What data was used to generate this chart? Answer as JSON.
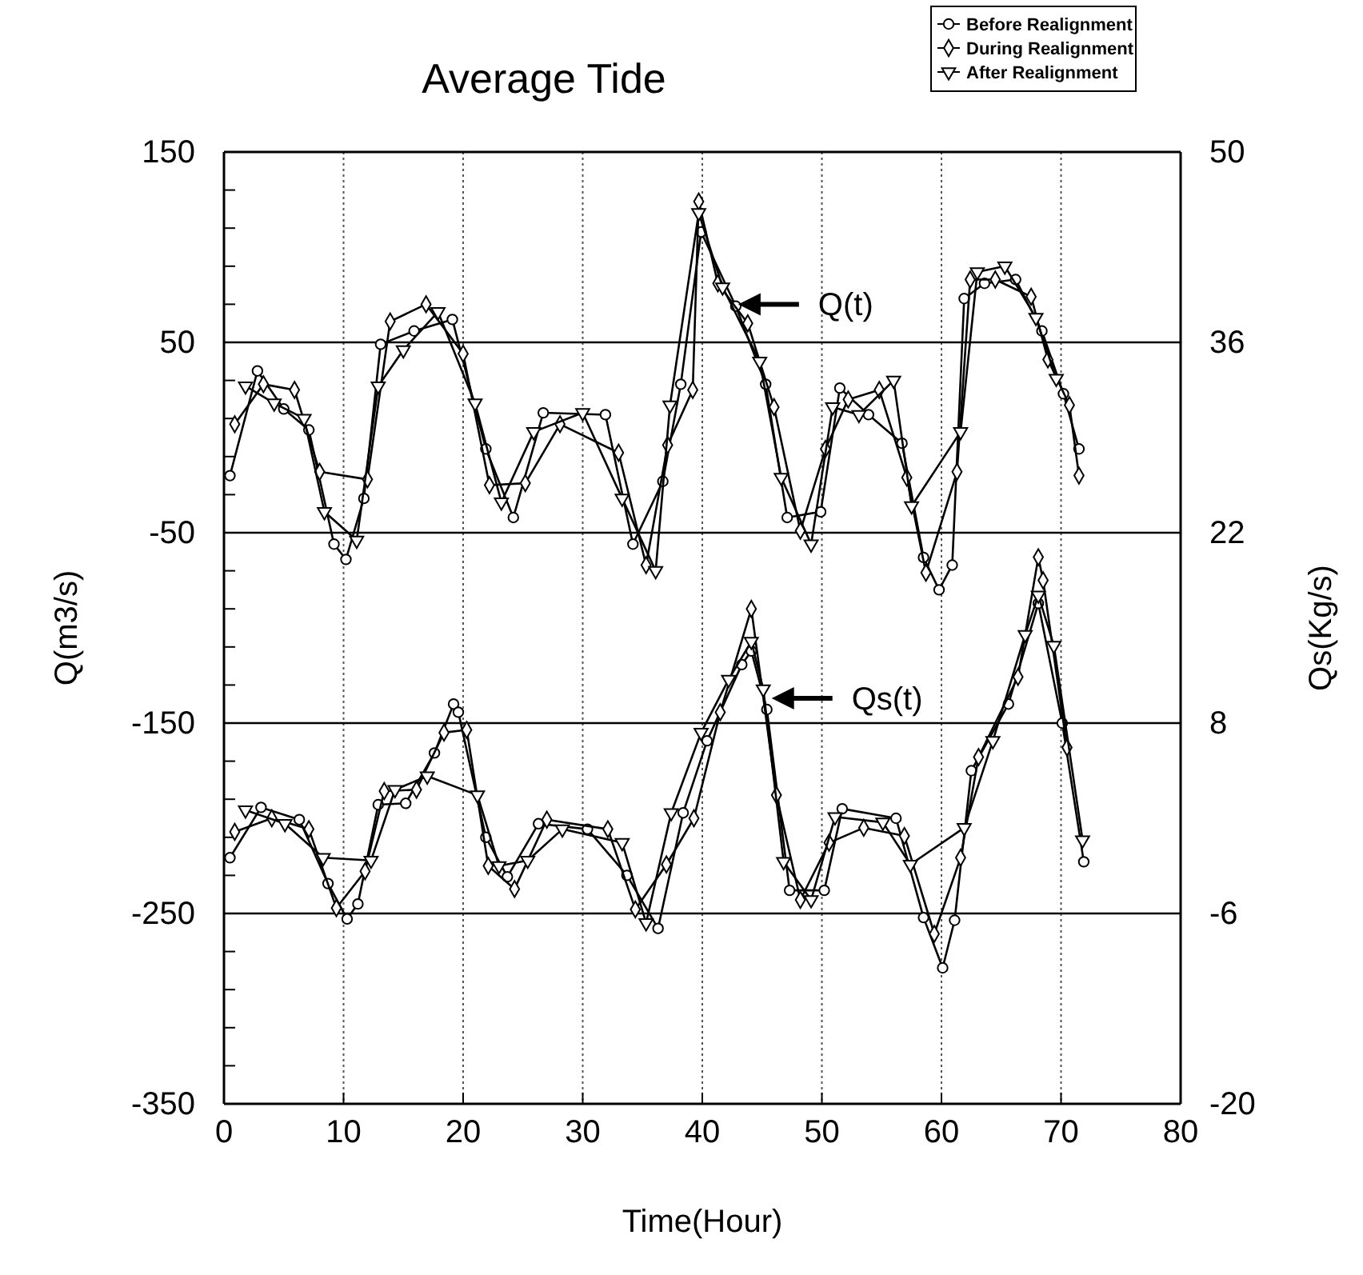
{
  "chart_data": {
    "type": "line",
    "title": "Average Tide",
    "xlabel": "Time(Hour)",
    "ylabel": "Q(m3/s)",
    "y2label": "Qs(Kg/s)",
    "xlim": [
      0,
      80
    ],
    "xticks": [
      0,
      10,
      20,
      30,
      40,
      50,
      60,
      70,
      80
    ],
    "ylim": [
      -350,
      150
    ],
    "yticks": [
      150,
      {
        "value": 130,
        "label": null
      },
      {
        "value": 110,
        "label": null
      },
      {
        "value": 90,
        "label": null
      },
      {
        "value": 70,
        "label": null
      },
      50,
      {
        "value": 30,
        "label": null
      },
      {
        "value": 10,
        "label": null
      },
      {
        "value": -10,
        "label": null
      },
      {
        "value": -30,
        "label": null
      },
      -50,
      {
        "value": -70,
        "label": null
      },
      {
        "value": -90,
        "label": null
      },
      {
        "value": -110,
        "label": null
      },
      {
        "value": -130,
        "label": null
      },
      -150,
      {
        "value": -170,
        "label": null
      },
      {
        "value": -190,
        "label": null
      },
      {
        "value": -210,
        "label": null
      },
      {
        "value": -230,
        "label": null
      },
      -250,
      {
        "value": -270,
        "label": null
      },
      {
        "value": -290,
        "label": null
      },
      {
        "value": -310,
        "label": null
      },
      {
        "value": -330,
        "label": null
      },
      -350
    ],
    "y2lim": [
      -20,
      50
    ],
    "y2ticks": [
      50,
      36,
      22,
      8,
      -6,
      -20
    ],
    "grid": true,
    "legend": "top right",
    "line_style": "solid",
    "annotations": [
      {
        "text": "Q(t)",
        "x": 43,
        "y": 70
      },
      {
        "text": "Qs(t)",
        "x": 45.8,
        "y": -137
      }
    ],
    "series": [
      {
        "name": "Before Realignment",
        "color": "#000000",
        "marker": "circle",
        "axis": "y",
        "x": [
          0.5,
          2.8,
          5,
          7.1,
          9.2,
          10.2,
          11.7,
          13.1,
          15.9,
          19.1,
          21.9,
          24.2,
          26.7,
          31.9,
          34.2,
          36.7,
          38.2,
          39.9,
          42.8,
          45.3,
          47.1,
          49.9,
          51.5,
          53.9,
          56.7,
          58.5,
          59.8,
          60.9,
          61.9,
          63.6,
          66.2,
          68.4,
          70.2,
          71.5
        ],
        "values": [
          -20,
          35,
          15,
          4,
          -56,
          -64,
          -32,
          49,
          56,
          62,
          -6,
          -42,
          13,
          12,
          -56,
          -23,
          28,
          108,
          69,
          28,
          -42,
          -39,
          26,
          12,
          -3,
          -63,
          -80,
          -67,
          73,
          81,
          83,
          56,
          23,
          -6
        ]
      },
      {
        "name": "During Realignment",
        "color": "#000000",
        "marker": "diamond",
        "axis": "y",
        "x": [
          0.9,
          3.3,
          5.9,
          8,
          12,
          13.9,
          16.9,
          20,
          22.2,
          25.2,
          28.1,
          33,
          35.3,
          37.1,
          39.2,
          39.7,
          41.3,
          43.8,
          46,
          48.2,
          50.3,
          52.2,
          54.8,
          57.1,
          58.7,
          61.3,
          62.4,
          64.5,
          67.5,
          68.9,
          70.7,
          71.5
        ],
        "values": [
          7,
          28,
          25,
          -18,
          -22,
          61,
          70,
          44,
          -25,
          -24,
          7,
          -8,
          -67,
          -4,
          25,
          124,
          81,
          60,
          16,
          -49,
          -6,
          20,
          25,
          -21,
          -71,
          -18,
          83,
          83,
          74,
          41,
          17,
          -20
        ]
      },
      {
        "name": "After Realignment",
        "color": "#000000",
        "marker": "triangle",
        "axis": "y",
        "x": [
          1.8,
          4.2,
          6.7,
          8.4,
          11.1,
          12.9,
          15,
          17.9,
          21,
          23.2,
          25.9,
          30,
          33.3,
          36.1,
          37.3,
          39.7,
          41.7,
          44.8,
          46.6,
          49.1,
          50.9,
          53.1,
          56,
          57.5,
          61.6,
          63,
          65.3,
          67.9,
          69.6
        ],
        "values": [
          27,
          18,
          10,
          -39,
          -54,
          27,
          46,
          66,
          18,
          -34,
          3,
          13,
          -32,
          -70,
          17,
          118,
          79,
          40,
          -21,
          -56,
          16,
          12,
          30,
          -36,
          3,
          87,
          90,
          63,
          31
        ]
      },
      {
        "color": "#000000",
        "marker": "circle",
        "axis": "y2",
        "x": [
          0.5,
          3.1,
          6.3,
          8.7,
          10.3,
          11.2,
          12.9,
          15.2,
          17.6,
          19.2,
          19.6,
          21.9,
          23.7,
          26.3,
          30.4,
          33.7,
          36.3,
          38.4,
          40.4,
          43.3,
          44.1,
          45.4,
          47.3,
          50.2,
          51.7,
          56.2,
          58.5,
          60.1,
          61.1,
          62.5,
          65.6,
          68.1,
          70.1,
          71.9
        ],
        "values": [
          -1.9,
          1.8,
          0.9,
          -3.8,
          -6.4,
          -5.3,
          2.0,
          2.1,
          5.8,
          9.4,
          8.8,
          -0.4,
          -3.3,
          0.6,
          0.2,
          -3.2,
          -7.1,
          1.4,
          6.7,
          12.3,
          13.3,
          9.0,
          -4.3,
          -4.3,
          1.7,
          1.0,
          -6.3,
          -10.0,
          -6.5,
          4.5,
          9.4,
          16.8,
          8.0,
          -2.2
        ]
      },
      {
        "color": "#000000",
        "marker": "diamond",
        "axis": "y2",
        "x": [
          0.9,
          4.0,
          7.1,
          9.4,
          11.8,
          13.4,
          16.1,
          18.4,
          20.3,
          22.1,
          24.3,
          27.0,
          32.1,
          34.4,
          37.0,
          39.3,
          41.5,
          44.1,
          46.2,
          48.2,
          50.6,
          53.5,
          56.9,
          59.4,
          61.6,
          63.1,
          66.4,
          68.1,
          68.5,
          70.5
        ],
        "values": [
          0.0,
          1.0,
          0.2,
          -5.6,
          -2.9,
          3.0,
          3.1,
          7.3,
          7.5,
          -2.5,
          -4.2,
          0.9,
          0.2,
          -5.7,
          -2.4,
          1.0,
          8.8,
          16.4,
          2.7,
          -5.0,
          -0.8,
          0.3,
          -0.3,
          -7.5,
          -1.9,
          5.5,
          11.4,
          20.2,
          18.5,
          6.2
        ]
      },
      {
        "color": "#000000",
        "marker": "triangle",
        "axis": "y2",
        "x": [
          1.8,
          5.1,
          8.3,
          12.3,
          14.3,
          17.0,
          21.2,
          23.0,
          25.4,
          28.3,
          33.3,
          35.3,
          37.4,
          39.9,
          42.2,
          44.1,
          45.1,
          46.8,
          49.1,
          51.1,
          55.1,
          57.4,
          61.9,
          64.3,
          67.0,
          68.1,
          69.4,
          71.8
        ],
        "values": [
          1.6,
          0.6,
          -1.9,
          -2.1,
          3.1,
          4.1,
          2.7,
          -2.5,
          -2.1,
          0.2,
          -0.8,
          -6.7,
          1.4,
          7.3,
          11.2,
          14.0,
          10.5,
          -2.2,
          -5.0,
          1.1,
          0.7,
          -2.4,
          0.3,
          6.7,
          14.5,
          17.4,
          13.7,
          -0.6
        ]
      }
    ]
  }
}
